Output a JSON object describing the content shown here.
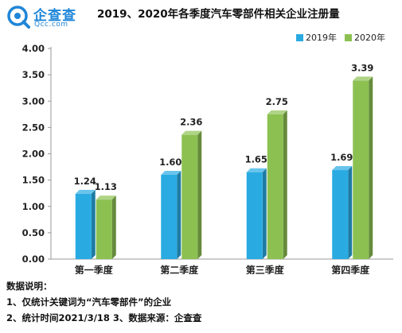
{
  "logo": {
    "name_cn": "企查查",
    "name_en": "Qcc.com",
    "icon": "magnifier-logo-icon"
  },
  "title": "2019、2020年各季度汽车零部件相关企业注册量",
  "colors": {
    "series_2019": "#29abe2",
    "series_2020": "#8cc152",
    "brand": "#1f86d8"
  },
  "chart_data": {
    "type": "bar",
    "title": "2019、2020年各季度汽车零部件相关企业注册量",
    "categories": [
      "第一季度",
      "第二季度",
      "第三季度",
      "第四季度"
    ],
    "series": [
      {
        "name": "2019年",
        "values": [
          1.24,
          1.6,
          1.65,
          1.69
        ],
        "labels": [
          "1.24",
          "1.60",
          "1.65",
          "1.69"
        ]
      },
      {
        "name": "2020年",
        "values": [
          1.13,
          2.36,
          2.75,
          3.39
        ],
        "labels": [
          "1.13",
          "2.36",
          "2.75",
          "3.39"
        ]
      }
    ],
    "yticks": [
      "0.00",
      "0.50",
      "1.00",
      "1.50",
      "2.00",
      "2.50",
      "3.00",
      "3.50",
      "4.00"
    ],
    "ylim": [
      0,
      4
    ],
    "xlabel": "",
    "ylabel": "",
    "legend_position": "top-right",
    "grid": false
  },
  "notes": {
    "heading": "数据说明：",
    "line1": "1、仅统计关键词为“汽车零部件”的企业",
    "line2": "2、统计时间2021/3/18   3、数据来源：企查查"
  }
}
